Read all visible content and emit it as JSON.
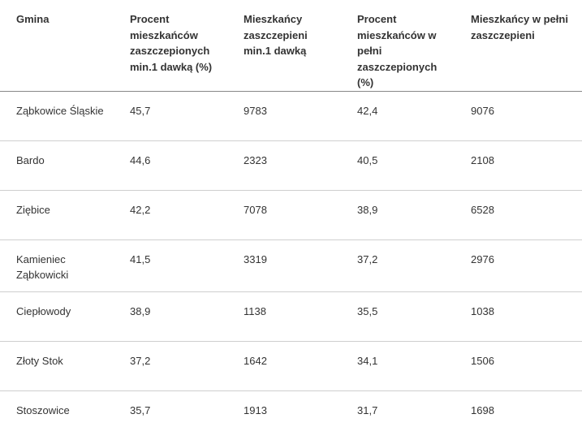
{
  "table": {
    "headers": [
      "Gmina",
      "Procent mieszkańców zaszczepionych min.1 dawką (%)",
      "Mieszkańcy zaszczepieni min.1 dawką",
      "Procent mieszkańców w pełni zaszczepionych (%)",
      "Mieszkańcy w pełni zaszczepieni"
    ],
    "rows": [
      [
        "Ząbkowice Śląskie",
        "45,7",
        "9783",
        "42,4",
        "9076"
      ],
      [
        "Bardo",
        "44,6",
        "2323",
        "40,5",
        "2108"
      ],
      [
        "Ziębice",
        "42,2",
        "7078",
        "38,9",
        "6528"
      ],
      [
        "Kamieniec Ząbkowicki",
        "41,5",
        "3319",
        "37,2",
        "2976"
      ],
      [
        "Ciepłowody",
        "38,9",
        "1138",
        "35,5",
        "1038"
      ],
      [
        "Złoty Stok",
        "37,2",
        "1642",
        "34,1",
        "1506"
      ],
      [
        "Stoszowice",
        "35,7",
        "1913",
        "31,7",
        "1698"
      ]
    ]
  }
}
